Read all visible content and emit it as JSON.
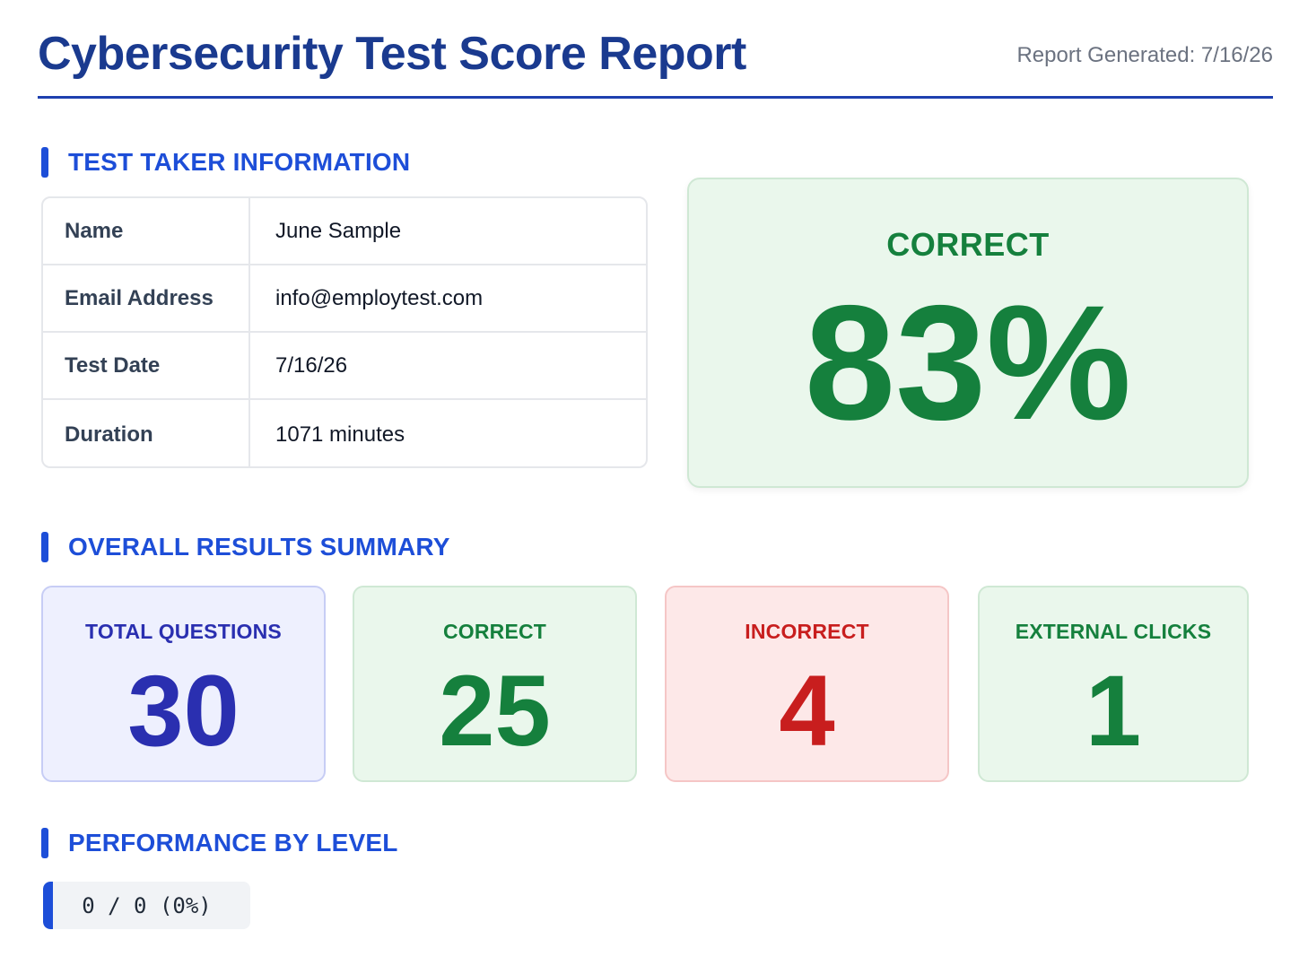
{
  "header": {
    "title": "Cybersecurity Test Score Report",
    "report_generated": "Report Generated: 7/16/26"
  },
  "sections": {
    "test_taker": "TEST TAKER INFORMATION",
    "overall": "OVERALL RESULTS SUMMARY",
    "performance": "PERFORMANCE BY LEVEL"
  },
  "test_taker": {
    "rows": [
      {
        "label": "Name",
        "value": "June Sample"
      },
      {
        "label": "Email Address",
        "value": "info@employtest.com"
      },
      {
        "label": "Test Date",
        "value": "7/16/26"
      },
      {
        "label": "Duration",
        "value": "1071 minutes"
      }
    ]
  },
  "score": {
    "label": "CORRECT",
    "value": "83%"
  },
  "summary": {
    "total_questions": {
      "label": "TOTAL QUESTIONS",
      "value": "30"
    },
    "correct": {
      "label": "CORRECT",
      "value": "25"
    },
    "incorrect": {
      "label": "INCORRECT",
      "value": "4"
    },
    "external_clicks": {
      "label": "EXTERNAL CLICKS",
      "value": "1"
    }
  },
  "performance": {
    "level_text": "0 / 0 (0%)"
  },
  "colors": {
    "primary": "#1d4ed8",
    "title": "#1a3a8f",
    "correct": "#15803d",
    "incorrect": "#c81e1e",
    "total": "#2a2fb0"
  }
}
